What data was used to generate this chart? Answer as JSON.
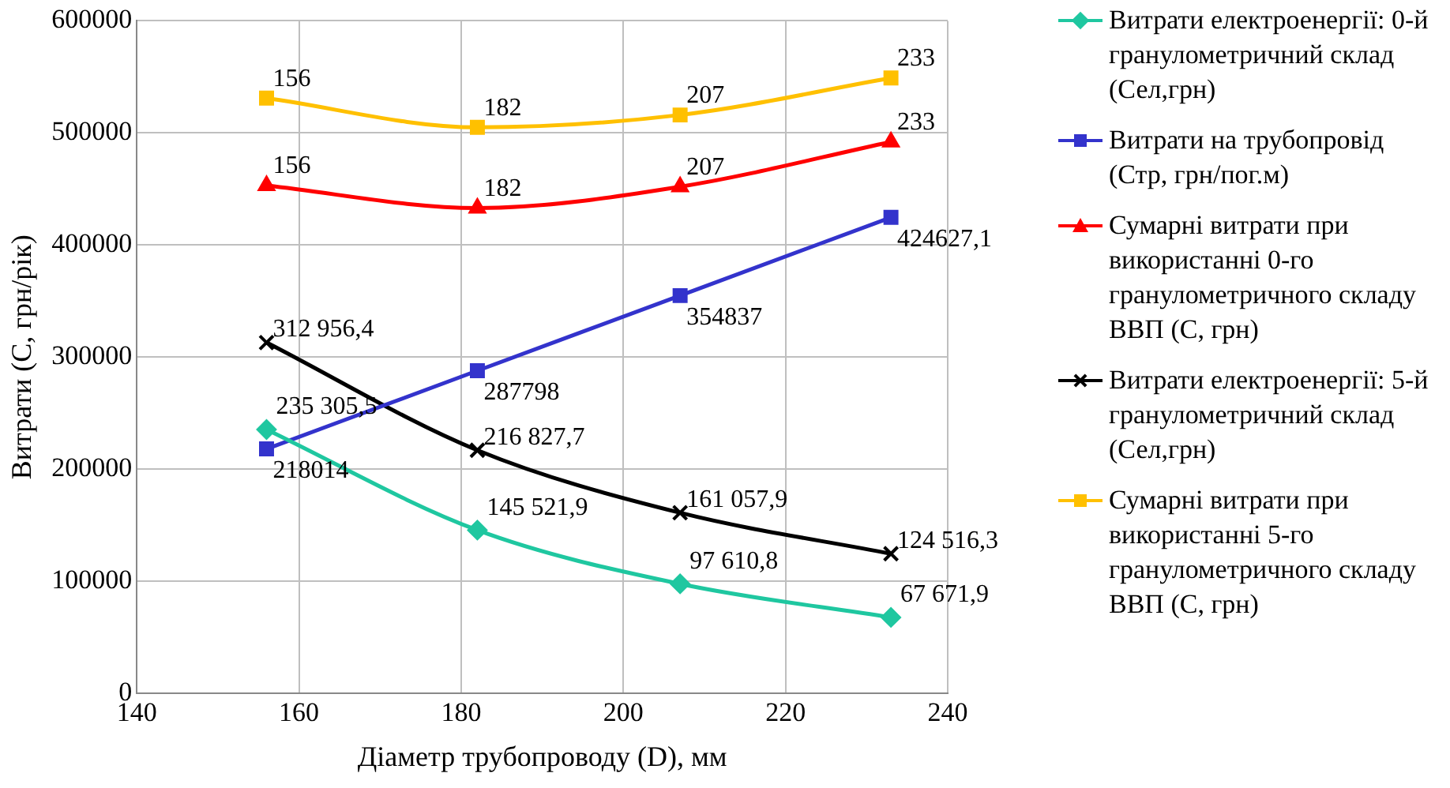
{
  "chart_data": {
    "type": "line",
    "xlabel": "Діаметр трубопроводу (D), мм",
    "ylabel": "Витрати (С, грн/рік)",
    "xlim": [
      140,
      240
    ],
    "xticks": [
      140,
      160,
      180,
      200,
      220,
      240
    ],
    "ylim": [
      0,
      600000
    ],
    "yticks": [
      0,
      100000,
      200000,
      300000,
      400000,
      500000,
      600000
    ],
    "grid": true,
    "legend": "right",
    "x": [
      156,
      182,
      207,
      233
    ],
    "series": [
      {
        "name": "Витрати електроенергії: 0-й гранулометричний склад (Сел,грн)",
        "color": "#1fc7a0",
        "marker": "diamond",
        "values": [
          235305.5,
          145521.9,
          97610.8,
          67671.9
        ],
        "value_labels": [
          "235 305,5",
          "145 521,9",
          "97 610,8",
          "67 671,9"
        ]
      },
      {
        "name": "Витрати на трубопровід (Стр, грн/пог.м)",
        "color": "#3333cc",
        "marker": "square",
        "values": [
          218014,
          287798,
          354837,
          424627.1
        ],
        "value_labels": [
          "218014",
          "287798",
          "354837",
          "424627,1"
        ]
      },
      {
        "name": "Сумарні витрати при використанні 0-го гранулометричного складу ВВП (С, грн)",
        "color": "#ff0000",
        "marker": "triangle",
        "values": [
          453000,
          433000,
          452000,
          492000
        ]
      },
      {
        "name": "Витрати електроенергії: 5-й гранулометричний склад (Сел,грн)",
        "color": "#000000",
        "marker": "cross",
        "values": [
          312956.4,
          216827.7,
          161057.9,
          124516.3
        ],
        "value_labels": [
          "312 956,4",
          "216 827,7",
          "161 057,9",
          "124 516,3"
        ]
      },
      {
        "name": "Сумарні витрати при використанні 5-го гранулометричного складу ВВП (С, грн)",
        "color": "#ffc000",
        "marker": "square",
        "values": [
          531000,
          505000,
          516000,
          549000
        ]
      }
    ],
    "annotations": [
      {
        "text": "156",
        "x": 156,
        "y": 453000
      },
      {
        "text": "182",
        "x": 182,
        "y": 433000
      },
      {
        "text": "207",
        "x": 207,
        "y": 452000
      },
      {
        "text": "233",
        "x": 233,
        "y": 492000
      },
      {
        "text": "156",
        "x": 156,
        "y": 531000
      },
      {
        "text": "182",
        "x": 182,
        "y": 505000
      },
      {
        "text": "207",
        "x": 207,
        "y": 516000
      },
      {
        "text": "233",
        "x": 233,
        "y": 549000
      }
    ]
  }
}
